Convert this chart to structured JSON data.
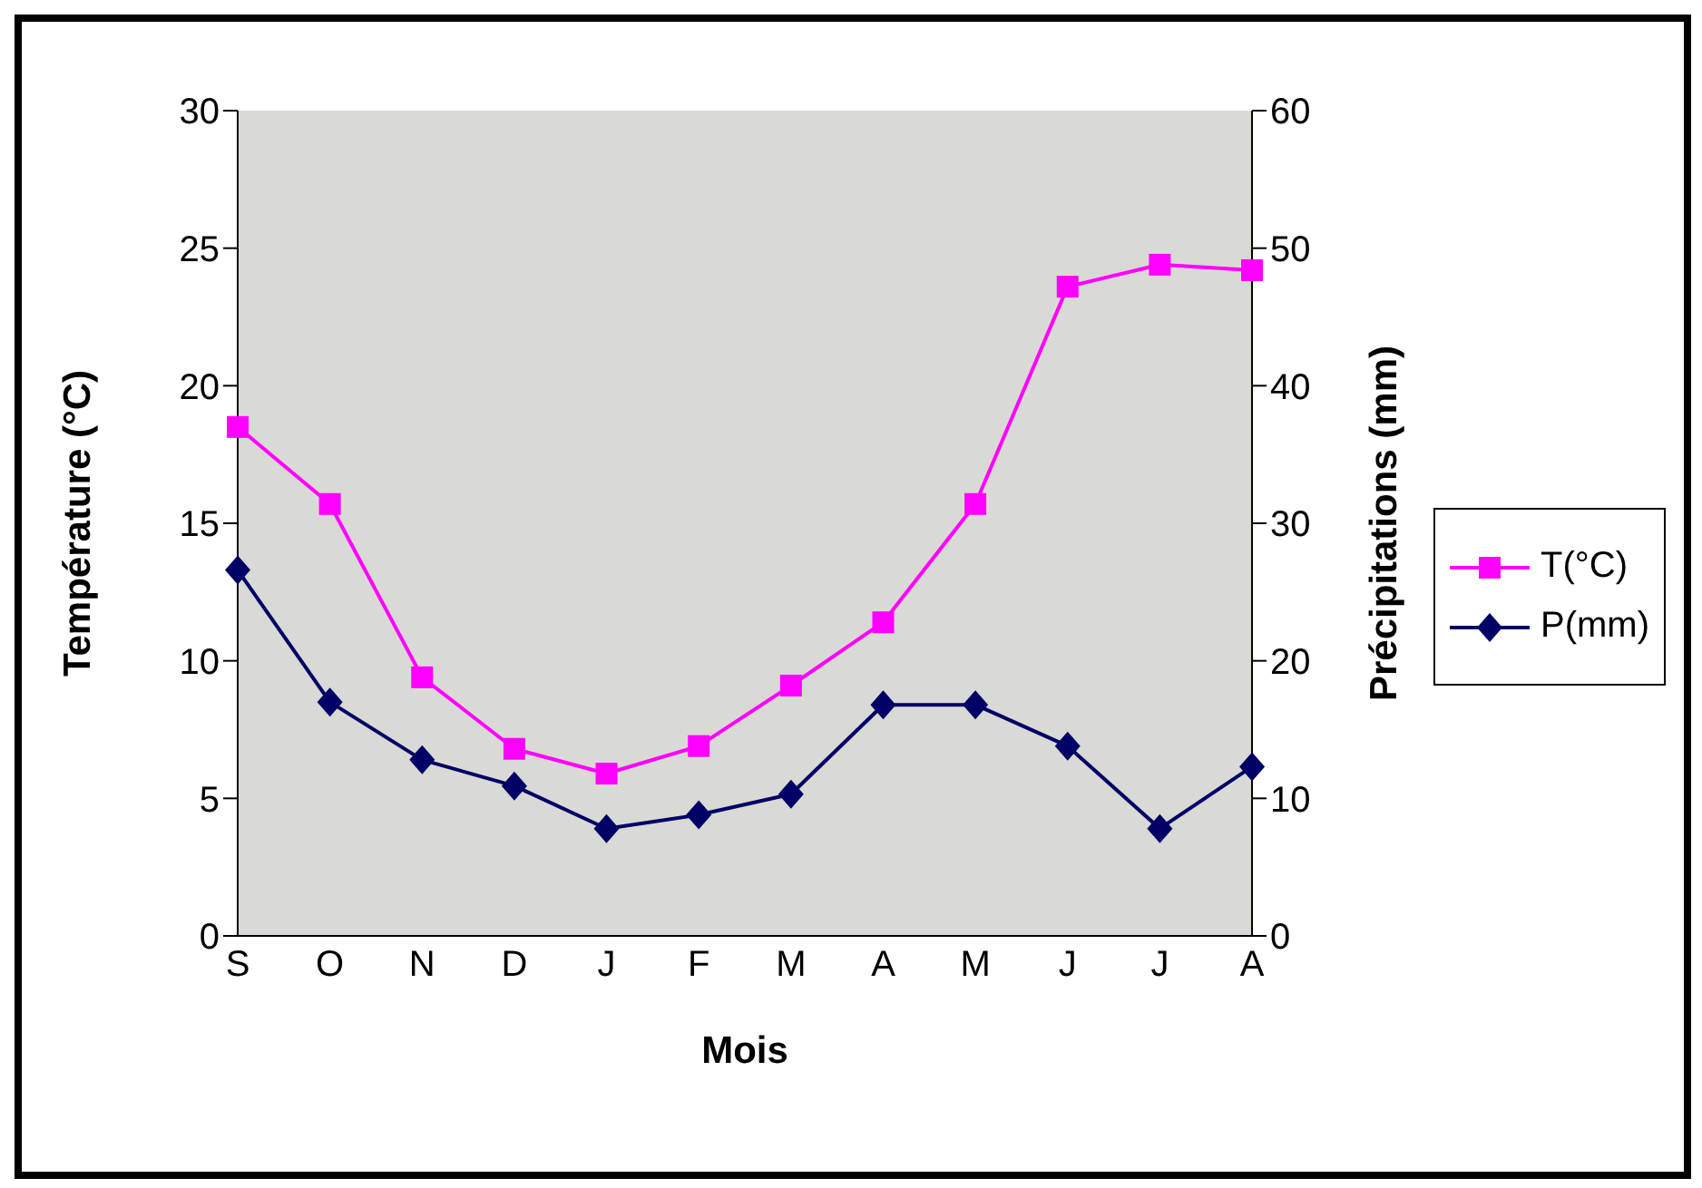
{
  "chart_data": {
    "type": "line",
    "xlabel": "Mois",
    "ylabel": "Température (°C)",
    "y2label": "Précipitations (mm)",
    "categories": [
      "S",
      "O",
      "N",
      "D",
      "J",
      "F",
      "M",
      "A",
      "M",
      "J",
      "J",
      "A"
    ],
    "series": [
      {
        "name": "T(°C)",
        "color": "#ff00ff",
        "marker": "square",
        "values": [
          18.5,
          15.7,
          9.4,
          6.8,
          5.9,
          6.9,
          9.1,
          11.4,
          15.7,
          23.6,
          24.4,
          24.2
        ]
      },
      {
        "name": "P(mm)",
        "color": "#000066",
        "marker": "diamond",
        "axis": "y2",
        "values": [
          26.6,
          17.0,
          12.8,
          10.9,
          7.8,
          8.8,
          10.3,
          16.8,
          16.8,
          13.8,
          7.8,
          12.3
        ]
      }
    ],
    "ylim": [
      0,
      30
    ],
    "yticks": [
      0,
      5,
      10,
      15,
      20,
      25,
      30
    ],
    "y2lim": [
      0,
      60
    ],
    "y2ticks": [
      0,
      10,
      20,
      30,
      40,
      50,
      60
    ],
    "grid": false,
    "legend": "right",
    "line_style": "solid"
  }
}
